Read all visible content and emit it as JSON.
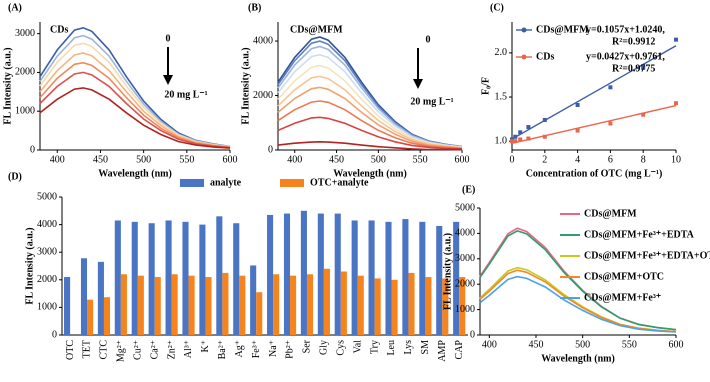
{
  "chart_data": [
    {
      "type": "line",
      "panel": "(A)",
      "xlabel": "Wavelength (nm)",
      "ylabel": "FL Intensity (a.u.)",
      "annotations": [
        "CDs",
        "0",
        "20 mg L⁻¹"
      ],
      "x": [
        380,
        400,
        420,
        430,
        440,
        460,
        480,
        500,
        520,
        540,
        560,
        580,
        600
      ],
      "xlim": [
        380,
        600
      ],
      "xticks": [
        400,
        450,
        500,
        550,
        600
      ],
      "ylim": [
        0,
        3300
      ],
      "yticks": [
        0,
        1000,
        2000,
        3000
      ],
      "series": [
        {
          "color": "#3a5fa8",
          "values": [
            1890,
            2580,
            3090,
            3150,
            3060,
            2580,
            1890,
            1260,
            790,
            440,
            250,
            160,
            90
          ]
        },
        {
          "color": "#9bb5de",
          "values": [
            1770,
            2420,
            2890,
            2950,
            2860,
            2420,
            1770,
            1180,
            740,
            410,
            240,
            150,
            90
          ]
        },
        {
          "color": "#f2dcb0",
          "values": [
            1650,
            2260,
            2700,
            2750,
            2670,
            2260,
            1650,
            1100,
            690,
            390,
            220,
            140,
            80
          ]
        },
        {
          "color": "#f6b47e",
          "values": [
            1500,
            2050,
            2450,
            2500,
            2430,
            2050,
            1500,
            1000,
            630,
            350,
            200,
            130,
            80
          ]
        },
        {
          "color": "#f08a5d",
          "values": [
            1350,
            1850,
            2210,
            2250,
            2180,
            1850,
            1350,
            900,
            560,
            320,
            180,
            110,
            70
          ]
        },
        {
          "color": "#d9534f",
          "values": [
            1200,
            1640,
            1960,
            2000,
            1940,
            1640,
            1200,
            800,
            500,
            280,
            160,
            100,
            60
          ]
        },
        {
          "color": "#b22222",
          "values": [
            960,
            1310,
            1570,
            1600,
            1550,
            1310,
            960,
            640,
            400,
            220,
            130,
            80,
            50
          ]
        }
      ]
    },
    {
      "type": "line",
      "panel": "(B)",
      "xlabel": "Wavelength (nm)",
      "ylabel": "FL Intensity (a.u.)",
      "annotations": [
        "CDs@MFM",
        "0",
        "20 mg L⁻¹"
      ],
      "x": [
        380,
        400,
        420,
        430,
        440,
        460,
        480,
        500,
        520,
        540,
        560,
        580,
        600
      ],
      "xlim": [
        380,
        600
      ],
      "xticks": [
        400,
        450,
        500,
        550,
        600
      ],
      "ylim": [
        0,
        4700
      ],
      "yticks": [
        0,
        2000,
        4000
      ],
      "series": [
        {
          "color": "#2f5597",
          "values": [
            2490,
            3400,
            4070,
            4150,
            4030,
            3400,
            2490,
            1660,
            1040,
            580,
            330,
            210,
            120
          ]
        },
        {
          "color": "#5b7fc0",
          "values": [
            2400,
            3280,
            3920,
            4000,
            3880,
            3280,
            2400,
            1600,
            1000,
            560,
            320,
            200,
            120
          ]
        },
        {
          "color": "#9bb5de",
          "values": [
            2280,
            3120,
            3720,
            3800,
            3690,
            3120,
            2280,
            1520,
            950,
            530,
            300,
            190,
            110
          ]
        },
        {
          "color": "#cdddf0",
          "values": [
            2100,
            2870,
            3430,
            3500,
            3400,
            2870,
            2100,
            1400,
            880,
            490,
            280,
            180,
            110
          ]
        },
        {
          "color": "#f5e3bd",
          "values": [
            1860,
            2540,
            3040,
            3100,
            3010,
            2540,
            1860,
            1240,
            780,
            430,
            250,
            160,
            90
          ]
        },
        {
          "color": "#f8c594",
          "values": [
            1620,
            2210,
            2650,
            2700,
            2620,
            2210,
            1620,
            1080,
            680,
            380,
            220,
            140,
            80
          ]
        },
        {
          "color": "#f4a06c",
          "values": [
            1380,
            1890,
            2250,
            2300,
            2230,
            1890,
            1380,
            920,
            580,
            320,
            180,
            120,
            70
          ]
        },
        {
          "color": "#eb7a55",
          "values": [
            1080,
            1480,
            1760,
            1800,
            1750,
            1480,
            1080,
            720,
            450,
            250,
            140,
            90,
            50
          ]
        },
        {
          "color": "#d64541",
          "values": [
            720,
            980,
            1180,
            1200,
            1160,
            980,
            720,
            480,
            300,
            170,
            100,
            60,
            40
          ]
        },
        {
          "color": "#b22222",
          "values": [
            180,
            250,
            290,
            300,
            290,
            250,
            180,
            120,
            80,
            40,
            20,
            20,
            10
          ]
        }
      ]
    },
    {
      "type": "scatter",
      "panel": "(C)",
      "xlabel": "Concentration of OTC (mg L⁻¹)",
      "ylabel": "F₀/F",
      "x": [
        0,
        0.2,
        0.5,
        1,
        2,
        4,
        6,
        8,
        10
      ],
      "xlim": [
        0,
        10
      ],
      "xticks": [
        0,
        2,
        4,
        6,
        8,
        10
      ],
      "ylim": [
        0.9,
        2.35
      ],
      "yticks": [
        {
          "value": 1,
          "label": "1.0"
        },
        1.5,
        {
          "value": 2,
          "label": "2.0"
        }
      ],
      "series": [
        {
          "name": "CDs@MFM",
          "color": "#3c5da8",
          "equation": "y=0.1057x+1.0240,",
          "r2": "R²=0.9912",
          "fit_slope": 0.1057,
          "fit_intercept": 1.024,
          "values": [
            1.02,
            1.05,
            1.1,
            1.16,
            1.24,
            1.41,
            1.61,
            1.83,
            2.15
          ]
        },
        {
          "name": "CDs",
          "color": "#e8664a",
          "equation": "y=0.0427x+0.9761,",
          "r2": "R²=0.9775",
          "fit_slope": 0.0427,
          "fit_intercept": 0.9761,
          "values": [
            1.0,
            1.0,
            1.02,
            1.03,
            1.05,
            1.12,
            1.2,
            1.3,
            1.43
          ]
        }
      ]
    },
    {
      "type": "bar",
      "panel": "(D)",
      "ylabel": "FL Intensity (a.u.)",
      "categories": [
        "OTC",
        "TET",
        "CTC",
        "Mg²⁺",
        "Cu²⁺",
        "Ca²⁺",
        "Zn²⁺",
        "Al³⁺",
        "K⁺",
        "Ba²⁺",
        "Ag⁺",
        "Fe³⁺",
        "Na⁺",
        "Pb²⁺",
        "Ser",
        "Gly",
        "Cys",
        "Val",
        "Try",
        "Leu",
        "Lys",
        "SM",
        "AMP",
        "CAP"
      ],
      "ylim": [
        0,
        5000
      ],
      "yticks": [
        0,
        1000,
        2000,
        3000,
        4000,
        5000
      ],
      "series": [
        {
          "name": "analyte",
          "color": "#4a74c4",
          "values": [
            2100,
            2780,
            2650,
            4150,
            4100,
            4050,
            4150,
            4100,
            4000,
            4300,
            4050,
            2520,
            4350,
            4400,
            4500,
            4400,
            4400,
            4150,
            4150,
            4100,
            4200,
            4100,
            3950,
            4100
          ]
        },
        {
          "name": "OTC+analyte",
          "color": "#f5841f",
          "values": [
            null,
            1280,
            1370,
            2200,
            2150,
            2100,
            2200,
            2150,
            2100,
            2250,
            2150,
            1550,
            2200,
            2150,
            2200,
            2400,
            2300,
            2150,
            2050,
            2000,
            2250,
            2100,
            2050,
            2100
          ]
        }
      ]
    },
    {
      "type": "line",
      "panel": "(E)",
      "xlabel": "Wavelength (nm)",
      "ylabel": "FL Intensity (a.u.)",
      "x": [
        390,
        400,
        420,
        430,
        440,
        460,
        480,
        500,
        520,
        540,
        560,
        580,
        600
      ],
      "xlim": [
        390,
        600
      ],
      "xticks": [
        400,
        450,
        500,
        550,
        600
      ],
      "ylim": [
        0,
        5000
      ],
      "yticks": [
        0,
        1000,
        2000,
        3000,
        4000,
        5000
      ],
      "series": [
        {
          "name": "CDs@MFM",
          "color": "#ec6682",
          "values": [
            2310,
            2860,
            3990,
            4200,
            4070,
            3440,
            2520,
            1760,
            1130,
            670,
            420,
            290,
            210
          ]
        },
        {
          "name": "CDs@MFM+Fe³⁺+EDTA",
          "color": "#2e9e6e",
          "values": [
            2260,
            2790,
            3900,
            4100,
            3980,
            3360,
            2460,
            1720,
            1110,
            660,
            410,
            290,
            210
          ]
        },
        {
          "name": "CDs@MFM+Fe³⁺+EDTA+OTC",
          "color": "#c8c81e",
          "values": [
            1460,
            1800,
            2520,
            2650,
            2570,
            2170,
            1590,
            1110,
            720,
            420,
            270,
            190,
            130
          ]
        },
        {
          "name": "CDs@MFM+OTC",
          "color": "#f08a2c",
          "values": [
            1400,
            1730,
            2420,
            2550,
            2470,
            2090,
            1530,
            1070,
            690,
            410,
            260,
            180,
            130
          ]
        },
        {
          "name": "CDs@MFM+Fe³⁺",
          "color": "#4aa3e8",
          "values": [
            1270,
            1560,
            2190,
            2300,
            2230,
            1890,
            1380,
            970,
            620,
            370,
            230,
            160,
            120
          ]
        }
      ]
    }
  ]
}
